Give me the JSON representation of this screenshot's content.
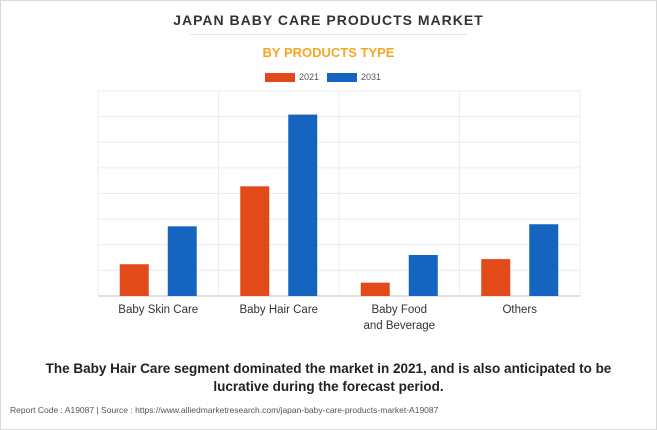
{
  "header": {
    "title": "JAPAN BABY CARE PRODUCTS MARKET",
    "subtitle": "BY PRODUCTS TYPE"
  },
  "legend": [
    {
      "label": "2021",
      "color": "#e34a1a"
    },
    {
      "label": "2031",
      "color": "#1565c0"
    }
  ],
  "chart_data": {
    "type": "bar",
    "categories": [
      "Baby Skin Care",
      "Baby Hair Care",
      "Baby Food\nand Beverage",
      "Others"
    ],
    "series": [
      {
        "name": "2021",
        "color": "#e34a1a",
        "values": [
          31,
          107,
          13,
          36
        ]
      },
      {
        "name": "2031",
        "color": "#1565c0",
        "values": [
          68,
          177,
          40,
          70
        ]
      }
    ],
    "ylim": [
      0,
      200
    ],
    "grid": true,
    "legend_position": "top-center",
    "xlabel": "",
    "ylabel": ""
  },
  "caption": "The Baby Hair Care segment dominated the market in 2021, and is also anticipated to be lucrative during the forecast period.",
  "footer": "Report Code : A19087  |  Source : https://www.alliedmarketresearch.com/japan-baby-care-products-market-A19087"
}
